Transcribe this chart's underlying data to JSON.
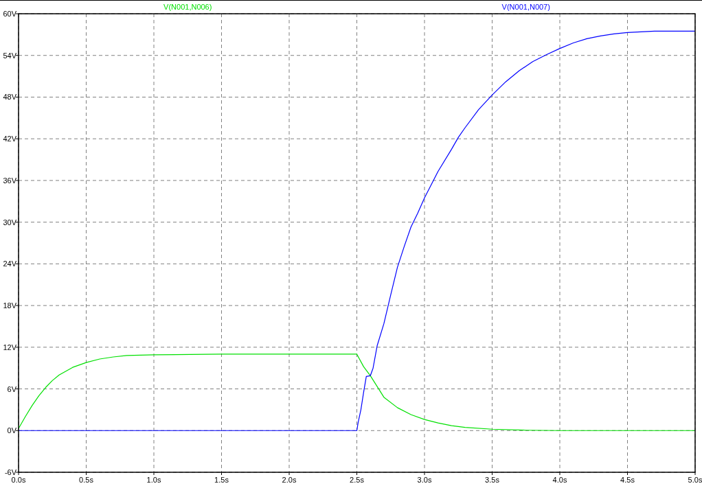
{
  "chart_data": {
    "type": "line",
    "xlim": [
      0,
      5
    ],
    "xticks": [
      {
        "value": 0,
        "label": "0.0s"
      },
      {
        "value": 0.5,
        "label": "0.5s"
      },
      {
        "value": 1,
        "label": "1.0s"
      },
      {
        "value": 1.5,
        "label": "1.5s"
      },
      {
        "value": 2,
        "label": "2.0s"
      },
      {
        "value": 2.5,
        "label": "2.5s"
      },
      {
        "value": 3,
        "label": "3.0s"
      },
      {
        "value": 3.5,
        "label": "3.5s"
      },
      {
        "value": 4,
        "label": "4.0s"
      },
      {
        "value": 4.5,
        "label": "4.5s"
      },
      {
        "value": 5,
        "label": "5.0s"
      }
    ],
    "ylim": [
      -6,
      60
    ],
    "yticks": [
      {
        "value": -6,
        "label": "-6V"
      },
      {
        "value": 0,
        "label": "0V"
      },
      {
        "value": 6,
        "label": "6V"
      },
      {
        "value": 12,
        "label": "12V"
      },
      {
        "value": 18,
        "label": "18V"
      },
      {
        "value": 24,
        "label": "24V"
      },
      {
        "value": 30,
        "label": "30V"
      },
      {
        "value": 36,
        "label": "36V"
      },
      {
        "value": 42,
        "label": "42V"
      },
      {
        "value": 48,
        "label": "48V"
      },
      {
        "value": 54,
        "label": "54V"
      },
      {
        "value": 60,
        "label": "60V"
      }
    ],
    "grid": true,
    "legend": "top",
    "marker": "none",
    "line_style": "solid",
    "series": [
      {
        "name": "V(N001,N006)",
        "color": "#00e000",
        "x": [
          0,
          0.05,
          0.1,
          0.15,
          0.2,
          0.25,
          0.3,
          0.4,
          0.5,
          0.6,
          0.7,
          0.8,
          1.0,
          1.5,
          2.0,
          2.5,
          2.55,
          2.6,
          2.7,
          2.8,
          2.9,
          3.0,
          3.1,
          3.2,
          3.3,
          3.5,
          3.75,
          4.0,
          5.0
        ],
        "values": [
          0.3,
          2,
          3.6,
          5,
          6.2,
          7.2,
          8,
          9.1,
          9.8,
          10.3,
          10.6,
          10.8,
          10.9,
          11,
          11,
          11,
          9.2,
          7.9,
          4.8,
          3.3,
          2.3,
          1.6,
          1.1,
          0.7,
          0.45,
          0.2,
          0.05,
          0,
          0
        ]
      },
      {
        "name": "V(N001,N007)",
        "color": "#0000ff",
        "x": [
          0,
          2.5,
          2.51,
          2.53,
          2.55,
          2.57,
          2.6,
          2.62,
          2.65,
          2.7,
          2.75,
          2.8,
          2.85,
          2.9,
          2.95,
          3.0,
          3.1,
          3.2,
          3.25,
          3.3,
          3.4,
          3.5,
          3.6,
          3.7,
          3.8,
          3.9,
          4.0,
          4.1,
          4.2,
          4.3,
          4.4,
          4.5,
          4.7,
          5.0
        ],
        "values": [
          0,
          0,
          1.2,
          3,
          5.5,
          7.8,
          7.9,
          9,
          12.2,
          15.4,
          19.5,
          23.5,
          26.5,
          29.3,
          31.3,
          33.5,
          37.3,
          40.5,
          42.2,
          43.6,
          46.2,
          48.3,
          50.2,
          51.8,
          53.1,
          54.1,
          55,
          55.8,
          56.4,
          56.8,
          57.1,
          57.3,
          57.5,
          57.5
        ]
      }
    ]
  }
}
